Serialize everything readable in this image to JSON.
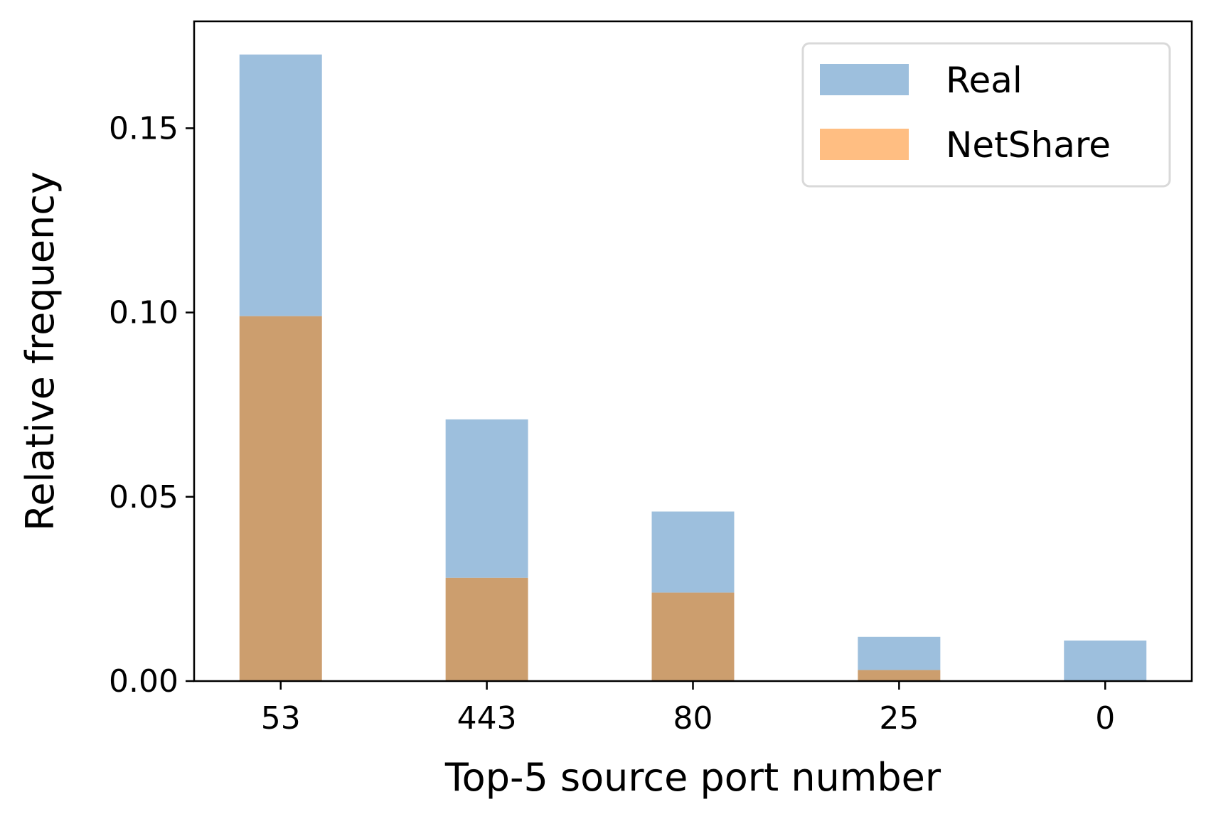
{
  "chart_data": {
    "type": "bar",
    "title": "",
    "xlabel": "Top-5 source port number",
    "ylabel": "Relative frequency",
    "categories": [
      "53",
      "443",
      "80",
      "25",
      "0"
    ],
    "series": [
      {
        "name": "Real",
        "values": [
          0.17,
          0.071,
          0.046,
          0.012,
          0.011
        ],
        "color": "#9dbfdd"
      },
      {
        "name": "NetShare",
        "values": [
          0.099,
          0.028,
          0.024,
          0.003,
          0.0
        ],
        "color": "#ffbe82"
      }
    ],
    "overlap_color": "#cc9e6e",
    "ylim": [
      0,
      0.179
    ],
    "yticks": [
      0.0,
      0.05,
      0.1,
      0.15
    ],
    "ytick_labels": [
      "0.00",
      "0.05",
      "0.10",
      "0.15"
    ],
    "grid": false,
    "legend_position": "top-right"
  }
}
